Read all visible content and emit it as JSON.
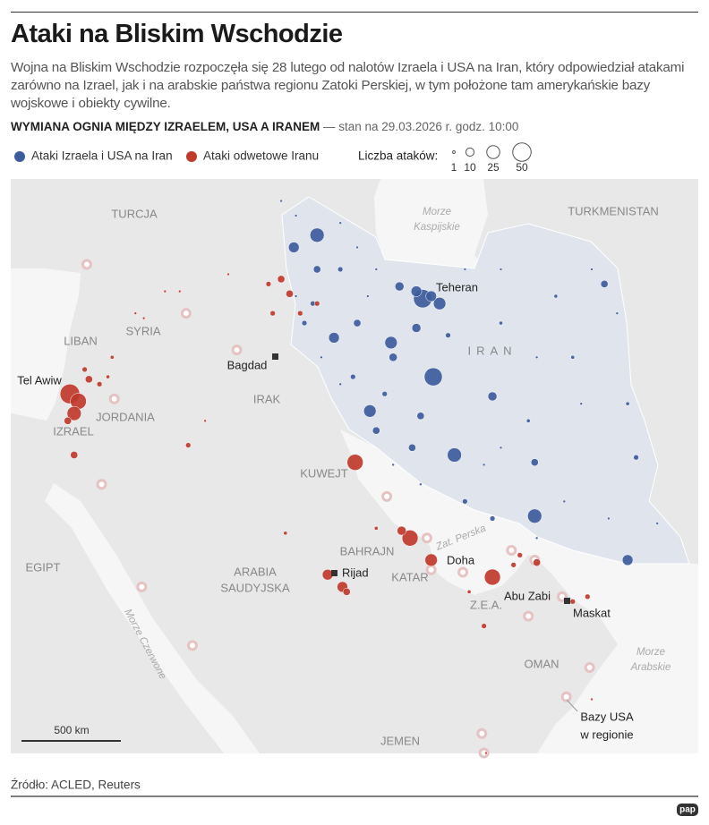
{
  "header": {
    "title": "Ataki na Bliskim Wschodzie",
    "subtitle": "Wojna na Bliskim Wschodzie rozpoczęła się 28 lutego od nalotów Izraela i USA na Iran, który odpowiedział atakami zarówno na Izrael, jak i na arabskie państwa regionu Zatoki Perskiej, w tym położone tam amerykańskie bazy wojskowe i obiekty cywilne.",
    "section_title": "WYMIANA OGNIA MIĘDZY IZRAELEM, USA A IRANEM",
    "section_note": "— stan na 29.03.2026 r. godz. 10:00"
  },
  "legend": {
    "size_title": "Liczba ataków:",
    "sizes": [
      1,
      10,
      25,
      50
    ]
  },
  "map": {
    "series": [
      {
        "name": "Ataki Izraela i USA na Iran",
        "color": "#3d5c9c",
        "points": [
          [
            46.5,
            38.6,
            30
          ],
          [
            45.4,
            38.1,
            17
          ],
          [
            51.5,
            36.0,
            50
          ],
          [
            52.3,
            35.8,
            23
          ],
          [
            51.2,
            36.3,
            17
          ],
          [
            51.9,
            36.1,
            17
          ],
          [
            50.4,
            36.5,
            12
          ],
          [
            47.3,
            34.4,
            17
          ],
          [
            50.0,
            34.2,
            23
          ],
          [
            52.0,
            32.8,
            48
          ],
          [
            49.0,
            31.4,
            23
          ],
          [
            53.0,
            29.6,
            30
          ],
          [
            56.8,
            27.1,
            30
          ],
          [
            54.8,
            32.0,
            12
          ],
          [
            51.2,
            34.8,
            12
          ],
          [
            61.2,
            25.3,
            17
          ],
          [
            50.1,
            33.6,
            10
          ],
          [
            46.5,
            37.2,
            8
          ],
          [
            47.6,
            37.2,
            4
          ],
          [
            48.4,
            35.0,
            8
          ],
          [
            49.3,
            30.6,
            8
          ],
          [
            51.4,
            31.2,
            8
          ],
          [
            51.0,
            29.9,
            8
          ],
          [
            54.8,
            27.0,
            4
          ],
          [
            53.5,
            27.7,
            4
          ],
          [
            60.1,
            36.6,
            8
          ],
          [
            56.8,
            29.3,
            8
          ],
          [
            61.6,
            29.5,
            4
          ],
          [
            48.2,
            32.8,
            4
          ],
          [
            46.3,
            35.8,
            4
          ],
          [
            45.9,
            35.0,
            4
          ],
          [
            49.7,
            32.1,
            4
          ],
          [
            52.7,
            34.5,
            4
          ],
          [
            55.2,
            35.0,
            2
          ],
          [
            57.8,
            36.1,
            2
          ],
          [
            58.6,
            33.6,
            2
          ],
          [
            61.2,
            31.7,
            2
          ],
          [
            56.5,
            31.0,
            2
          ],
          [
            44.8,
            40.0,
            1
          ],
          [
            45.5,
            39.4,
            1
          ],
          [
            47.6,
            39.1,
            1
          ],
          [
            48.4,
            38.1,
            1
          ],
          [
            49.3,
            37.2,
            1
          ],
          [
            53.5,
            37.2,
            1
          ],
          [
            55.2,
            37.2,
            1
          ],
          [
            59.5,
            37.2,
            1
          ],
          [
            60.7,
            35.4,
            1
          ],
          [
            59.0,
            31.7,
            1
          ],
          [
            58.2,
            27.7,
            1
          ],
          [
            60.3,
            27.0,
            1
          ],
          [
            62.6,
            26.8,
            1
          ],
          [
            54.4,
            29.2,
            1
          ],
          [
            51.4,
            28.4,
            1
          ],
          [
            50.1,
            29.2,
            1
          ],
          [
            47.6,
            32.5,
            1
          ],
          [
            46.7,
            33.6,
            1
          ],
          [
            45.5,
            36.1,
            1
          ],
          [
            48.9,
            36.1,
            1
          ],
          [
            56.9,
            33.6,
            1
          ],
          [
            55.2,
            29.9,
            1
          ],
          [
            56.9,
            26.2,
            1
          ]
        ]
      },
      {
        "name": "Ataki odwetowe Iranu",
        "color": "#bf3a2b",
        "points": [
          [
            34.8,
            32.1,
            57
          ],
          [
            35.2,
            31.8,
            38
          ],
          [
            35.0,
            31.3,
            30
          ],
          [
            35.7,
            32.7,
            8
          ],
          [
            35.5,
            33.1,
            4
          ],
          [
            36.2,
            32.5,
            4
          ],
          [
            35.0,
            29.6,
            8
          ],
          [
            34.7,
            31.0,
            8
          ],
          [
            48.3,
            29.3,
            38
          ],
          [
            50.9,
            26.2,
            38
          ],
          [
            50.5,
            26.5,
            12
          ],
          [
            51.9,
            25.3,
            23
          ],
          [
            54.8,
            24.6,
            38
          ],
          [
            47.0,
            24.7,
            17
          ],
          [
            47.7,
            24.2,
            17
          ],
          [
            47.9,
            24.0,
            8
          ],
          [
            44.8,
            36.8,
            8
          ],
          [
            45.2,
            36.2,
            8
          ],
          [
            44.2,
            36.6,
            4
          ],
          [
            45.7,
            35.4,
            4
          ],
          [
            44.4,
            35.4,
            4
          ],
          [
            46.5,
            35.8,
            4
          ],
          [
            40.4,
            30.0,
            4
          ],
          [
            55.8,
            25.1,
            4
          ],
          [
            56.9,
            25.2,
            8
          ],
          [
            56.1,
            25.5,
            4
          ],
          [
            58.6,
            23.6,
            4
          ],
          [
            59.3,
            23.8,
            4
          ],
          [
            54.4,
            22.6,
            4
          ],
          [
            53.7,
            24.0,
            2
          ],
          [
            37.9,
            35.4,
            1
          ],
          [
            38.3,
            35.2,
            1
          ],
          [
            40.0,
            36.3,
            1
          ],
          [
            39.3,
            36.3,
            1
          ],
          [
            54.5,
            17.4,
            1
          ],
          [
            36.6,
            32.8,
            2
          ],
          [
            36.8,
            33.6,
            2
          ],
          [
            42.3,
            37.0,
            1
          ],
          [
            41.2,
            31.0,
            1
          ],
          [
            45.0,
            26.4,
            2
          ],
          [
            49.3,
            26.6,
            2
          ],
          [
            59.5,
            19.6,
            1
          ]
        ]
      }
    ],
    "us_bases": [
      [
        35.6,
        37.4
      ],
      [
        40.3,
        35.4
      ],
      [
        42.7,
        33.9
      ],
      [
        36.9,
        31.9
      ],
      [
        36.3,
        28.4
      ],
      [
        40.6,
        21.8
      ],
      [
        38.2,
        24.2
      ],
      [
        49.8,
        27.9
      ],
      [
        51.7,
        26.2
      ],
      [
        51.9,
        24.9
      ],
      [
        53.4,
        24.8
      ],
      [
        55.7,
        25.7
      ],
      [
        56.8,
        25.3
      ],
      [
        58.1,
        23.8
      ],
      [
        56.5,
        23.0
      ],
      [
        59.4,
        20.9
      ],
      [
        58.3,
        19.7
      ],
      [
        54.3,
        18.2
      ],
      [
        54.4,
        17.4
      ]
    ],
    "labels": [
      "TURCJA",
      "TURKMENISTAN",
      "SYRIA",
      "LIBAN",
      "IRAK",
      "JORDANIA",
      "IZRAEL",
      "IRAN",
      "KUWEJT",
      "BAHRAJN",
      "KATAR",
      "EGIPT",
      "Z.E.A.",
      "OMAN",
      "JEMEN"
    ],
    "saudi_label": [
      "ARABIA",
      "SAUDYJSKA"
    ],
    "caspian_label": [
      "Morze",
      "Kaspijskie"
    ],
    "arabian_sea_label": [
      "Morze",
      "Arabskie"
    ],
    "red_sea_label": "Morze Czerwone",
    "gulf_label": "Zat. Perska",
    "cities": [
      "Teheran",
      "Bagdad",
      "Tel Awiw",
      "Rijad",
      "Doha",
      "Abu Zabi",
      "Maskat"
    ],
    "scale_label": "500 km",
    "bases_label": [
      "Bazy USA",
      "w regionie"
    ]
  },
  "footer": {
    "source": "Źródło: ACLED, Reuters",
    "logo": "pap"
  }
}
